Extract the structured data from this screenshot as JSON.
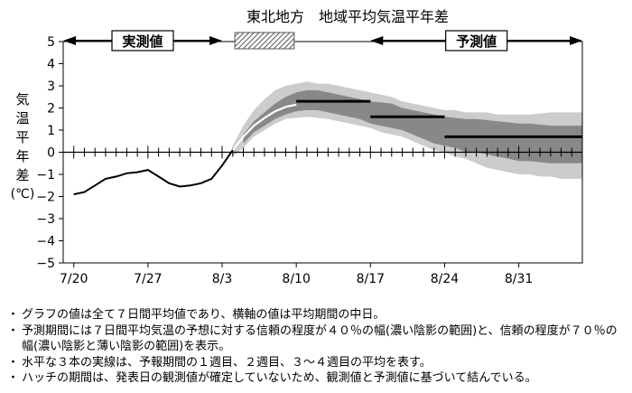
{
  "chart_data": {
    "type": "line",
    "title": "東北地方　地域平均気温平年差",
    "ylabel_chars": [
      "気",
      "温",
      "平",
      "年",
      "差",
      "(℃)"
    ],
    "y_ticks": [
      5,
      4,
      3,
      2,
      1,
      0,
      -1,
      -2,
      -3,
      -4,
      -5
    ],
    "ylim": [
      -5,
      5
    ],
    "x_ticks": [
      {
        "label": "7/20",
        "day": 0
      },
      {
        "label": "7/27",
        "day": 7
      },
      {
        "label": "8/3",
        "day": 14
      },
      {
        "label": "8/10",
        "day": 21
      },
      {
        "label": "8/17",
        "day": 28
      },
      {
        "label": "8/24",
        "day": 35
      },
      {
        "label": "8/31",
        "day": 42
      }
    ],
    "xlim_days": [
      -1,
      48
    ],
    "period_labels": {
      "observed": "実測値",
      "forecast": "予測値"
    },
    "periods": {
      "observed_days": [
        -1,
        14
      ],
      "hatched_days": [
        15.2,
        20.8
      ],
      "forecast_days": [
        28,
        48
      ]
    },
    "observed": {
      "days": [
        0,
        1,
        2,
        3,
        4,
        5,
        6,
        7,
        8,
        9,
        10,
        11,
        12,
        13,
        14,
        15
      ],
      "values": [
        -1.9,
        -1.8,
        -1.5,
        -1.2,
        -1.1,
        -0.95,
        -0.9,
        -0.8,
        -1.1,
        -1.4,
        -1.55,
        -1.5,
        -1.4,
        -1.2,
        -0.6,
        0.1
      ]
    },
    "hatched_line": {
      "days": [
        15,
        16,
        17,
        18,
        19,
        20,
        21
      ],
      "values": [
        0.1,
        0.7,
        1.2,
        1.55,
        1.85,
        2.05,
        2.15
      ]
    },
    "band_40": {
      "days": [
        16,
        17,
        18,
        19,
        20,
        21,
        22,
        23,
        24,
        25,
        26,
        27,
        28,
        29,
        30,
        31,
        32,
        33,
        34,
        35,
        36,
        37,
        38,
        39,
        40,
        41,
        42,
        43,
        44,
        45,
        46,
        47,
        48
      ],
      "upper": [
        0.8,
        1.4,
        1.8,
        2.2,
        2.5,
        2.7,
        2.8,
        2.8,
        2.7,
        2.6,
        2.5,
        2.4,
        2.3,
        2.25,
        2.2,
        2.0,
        1.9,
        1.8,
        1.7,
        1.6,
        1.55,
        1.5,
        1.5,
        1.45,
        1.4,
        1.35,
        1.3,
        1.3,
        1.25,
        1.2,
        1.2,
        1.2,
        1.2
      ],
      "lower": [
        0.4,
        0.9,
        1.2,
        1.5,
        1.7,
        1.85,
        1.9,
        1.9,
        1.8,
        1.7,
        1.6,
        1.5,
        1.3,
        1.2,
        1.1,
        1.0,
        0.8,
        0.6,
        0.4,
        0.3,
        0.2,
        0.0,
        0.0,
        -0.1,
        -0.2,
        -0.3,
        -0.4,
        -0.4,
        -0.45,
        -0.5,
        -0.5,
        -0.5,
        -0.5
      ]
    },
    "band_70": {
      "days": [
        15,
        16,
        17,
        18,
        19,
        20,
        21,
        22,
        23,
        24,
        25,
        26,
        27,
        28,
        29,
        30,
        31,
        32,
        33,
        34,
        35,
        36,
        37,
        38,
        39,
        40,
        41,
        42,
        43,
        44,
        45,
        46,
        47,
        48
      ],
      "upper": [
        0.3,
        1.2,
        1.9,
        2.4,
        2.8,
        3.0,
        3.1,
        3.2,
        3.1,
        3.1,
        3.0,
        2.9,
        2.8,
        2.7,
        2.6,
        2.5,
        2.3,
        2.2,
        2.1,
        2.0,
        1.9,
        1.9,
        1.8,
        1.8,
        1.8,
        1.7,
        1.7,
        1.7,
        1.7,
        1.75,
        1.8,
        1.8,
        1.8,
        1.8
      ],
      "lower": [
        -0.2,
        0.2,
        0.7,
        1.0,
        1.3,
        1.5,
        1.55,
        1.6,
        1.55,
        1.5,
        1.4,
        1.3,
        1.2,
        1.1,
        0.9,
        0.8,
        0.7,
        0.5,
        0.3,
        0.1,
        0.0,
        -0.2,
        -0.3,
        -0.5,
        -0.7,
        -0.8,
        -0.9,
        -1.0,
        -1.0,
        -1.1,
        -1.1,
        -1.2,
        -1.2,
        -1.2
      ]
    },
    "weekly_means": [
      {
        "start": 21,
        "end": 28,
        "value": 2.3
      },
      {
        "start": 28,
        "end": 35,
        "value": 1.6
      },
      {
        "start": 35,
        "end": 48,
        "value": 0.7
      }
    ],
    "grid": false,
    "colors": {
      "band_40": "#888888",
      "band_70": "#cccccc",
      "hatch": "#555555",
      "line": "#000000"
    }
  },
  "notes": [
    {
      "bullet": "・",
      "text": "グラフの値は全て７日間平均値であり、横軸の値は平均期間の中日。"
    },
    {
      "bullet": "・",
      "text": "予測期間には７日間平均気温の予想に対する信頼の程度が４０％の幅(濃い陰影の範囲)と、信頼の程度が７０％の幅(濃い陰影と薄い陰影の範囲)を表示。"
    },
    {
      "bullet": "・",
      "text": "水平な３本の実線は、予報期間の１週目、２週目、３～４週目の平均を表す。"
    },
    {
      "bullet": "・",
      "text": "ハッチの期間は、発表日の観測値が確定していないため、観測値と予測値に基づいて結んでいる。"
    }
  ]
}
